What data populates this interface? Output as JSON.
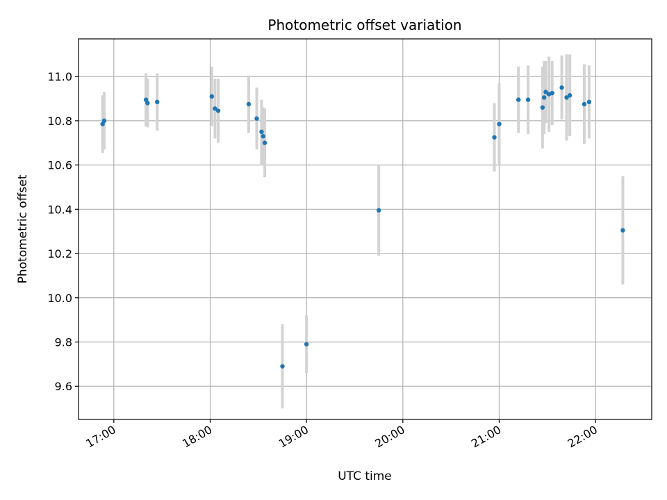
{
  "chart_data": {
    "type": "scatter",
    "title": "Photometric offset variation",
    "xlabel": "UTC time",
    "ylabel": "Photometric offset",
    "x_axis": {
      "type": "time",
      "min": "16:38",
      "max": "22:35",
      "ticks": [
        "17:00",
        "18:00",
        "19:00",
        "20:00",
        "21:00",
        "22:00"
      ]
    },
    "y_axis": {
      "min": 9.45,
      "max": 11.17,
      "ticks": [
        "9.6",
        "9.8",
        "10.0",
        "10.2",
        "10.4",
        "10.6",
        "10.8",
        "11.0"
      ]
    },
    "grid": true,
    "colors": {
      "point": "#1f77b4",
      "errorbar": "#d3d3d3",
      "grid": "#b0b0b0"
    },
    "points": [
      {
        "x": "16:53",
        "y": 10.785,
        "err": 0.13
      },
      {
        "x": "16:54",
        "y": 10.8,
        "err": 0.13
      },
      {
        "x": "17:20",
        "y": 10.895,
        "err": 0.12
      },
      {
        "x": "17:21",
        "y": 10.88,
        "err": 0.11
      },
      {
        "x": "17:27",
        "y": 10.885,
        "err": 0.13
      },
      {
        "x": "18:01",
        "y": 10.91,
        "err": 0.135
      },
      {
        "x": "18:03",
        "y": 10.855,
        "err": 0.135
      },
      {
        "x": "18:05",
        "y": 10.845,
        "err": 0.145
      },
      {
        "x": "18:24",
        "y": 10.875,
        "err": 0.13
      },
      {
        "x": "18:29",
        "y": 10.81,
        "err": 0.14
      },
      {
        "x": "18:32",
        "y": 10.75,
        "err": 0.145
      },
      {
        "x": "18:33",
        "y": 10.73,
        "err": 0.13
      },
      {
        "x": "18:34",
        "y": 10.7,
        "err": 0.155
      },
      {
        "x": "18:45",
        "y": 9.69,
        "err": 0.19
      },
      {
        "x": "19:00",
        "y": 9.79,
        "err": 0.13
      },
      {
        "x": "19:45",
        "y": 10.395,
        "err": 0.205
      },
      {
        "x": "20:57",
        "y": 10.725,
        "err": 0.155
      },
      {
        "x": "21:00",
        "y": 10.785,
        "err": 0.185
      },
      {
        "x": "21:12",
        "y": 10.895,
        "err": 0.15
      },
      {
        "x": "21:18",
        "y": 10.895,
        "err": 0.155
      },
      {
        "x": "21:27",
        "y": 10.86,
        "err": 0.185
      },
      {
        "x": "21:28",
        "y": 10.905,
        "err": 0.165
      },
      {
        "x": "21:29",
        "y": 10.93,
        "err": 0.14
      },
      {
        "x": "21:31",
        "y": 10.92,
        "err": 0.17
      },
      {
        "x": "21:33",
        "y": 10.925,
        "err": 0.145
      },
      {
        "x": "21:39",
        "y": 10.95,
        "err": 0.145
      },
      {
        "x": "21:42",
        "y": 10.905,
        "err": 0.195
      },
      {
        "x": "21:44",
        "y": 10.915,
        "err": 0.185
      },
      {
        "x": "21:53",
        "y": 10.875,
        "err": 0.18
      },
      {
        "x": "21:56",
        "y": 10.885,
        "err": 0.165
      },
      {
        "x": "22:17",
        "y": 10.305,
        "err": 0.245
      }
    ]
  }
}
